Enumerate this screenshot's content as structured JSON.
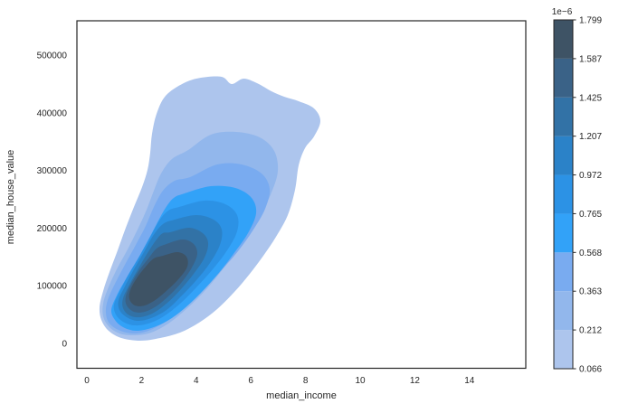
{
  "figure": {
    "background": "#ffffff",
    "text_color": "#262626",
    "spine_color": "#262626"
  },
  "chart_data": {
    "type": "heatmap",
    "subtype": "bivariate-kde-filled-contour",
    "title": "",
    "xlabel": "median_income",
    "ylabel": "median_house_value",
    "x_tick_labels": [
      "0",
      "2",
      "4",
      "6",
      "8",
      "10",
      "12",
      "14"
    ],
    "x_tick_values": [
      0,
      2,
      4,
      6,
      8,
      10,
      12,
      14
    ],
    "y_tick_labels": [
      "0",
      "100000",
      "200000",
      "300000",
      "400000",
      "500000"
    ],
    "y_tick_values": [
      0,
      100000,
      200000,
      300000,
      400000,
      500000
    ],
    "xlim": [
      -0.4,
      16.1
    ],
    "ylim": [
      -44000,
      560000
    ],
    "grid": false,
    "density_levels_1e6": [
      0.066,
      0.212,
      0.363,
      0.568,
      0.765,
      0.972,
      1.207,
      1.425,
      1.587,
      1.799
    ],
    "bands_low_to_high": [
      {
        "range": [
          0.066,
          0.212
        ],
        "color": "#adc5ed"
      },
      {
        "range": [
          0.212,
          0.363
        ],
        "color": "#92b7ec"
      },
      {
        "range": [
          0.363,
          0.568
        ],
        "color": "#79abf0"
      },
      {
        "range": [
          0.568,
          0.765
        ],
        "color": "#32a2f8"
      },
      {
        "range": [
          0.765,
          0.972
        ],
        "color": "#2c92e5"
      },
      {
        "range": [
          0.972,
          1.207
        ],
        "color": "#2b82c8"
      },
      {
        "range": [
          1.207,
          1.425
        ],
        "color": "#3272a6"
      },
      {
        "range": [
          1.425,
          1.587
        ],
        "color": "#3a6287"
      },
      {
        "range": [
          1.587,
          1.799
        ],
        "color": "#3e5365"
      }
    ],
    "colorbar": {
      "position": "right",
      "offset_label": "1e−6",
      "tick_labels_top_to_bottom": [
        "1.799",
        "1.587",
        "1.425",
        "1.207",
        "0.972",
        "0.765",
        "0.568",
        "0.363",
        "0.212",
        "0.066"
      ]
    },
    "density_peak": {
      "median_income": 2.7,
      "median_house_value": 115000,
      "density_1e6": 1.8
    },
    "outer_contour_extent": {
      "median_income": [
        0.5,
        8.6
      ],
      "median_house_value": [
        8000,
        462000
      ]
    }
  }
}
